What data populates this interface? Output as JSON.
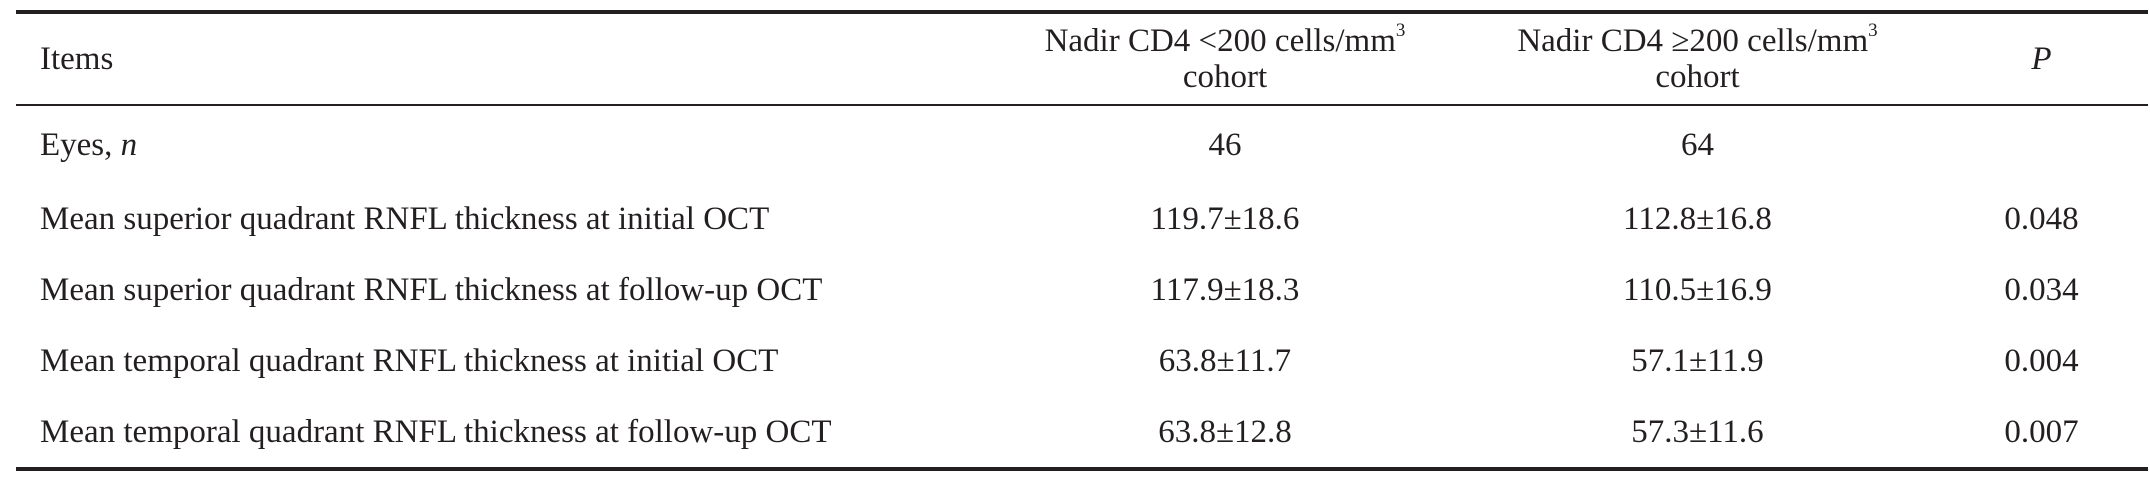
{
  "table": {
    "headers": {
      "items": "Items",
      "group1": {
        "line1": "Nadir CD4 <200 cells/mm",
        "sup": "3",
        "line2": "cohort"
      },
      "group2": {
        "line1": "Nadir CD4 ≥200 cells/mm",
        "sup": "3",
        "line2": "cohort"
      },
      "p": "P"
    },
    "rows": [
      {
        "item_text": "Eyes, ",
        "item_italic": "n",
        "group1": "46",
        "group2": "64",
        "p": ""
      },
      {
        "item_text": "Mean superior quadrant RNFL thickness at initial OCT",
        "item_italic": "",
        "group1": "119.7±18.6",
        "group2": "112.8±16.8",
        "p": "0.048"
      },
      {
        "item_text": "Mean superior quadrant RNFL thickness at follow-up OCT",
        "item_italic": "",
        "group1": "117.9±18.3",
        "group2": "110.5±16.9",
        "p": "0.034"
      },
      {
        "item_text": "Mean temporal quadrant RNFL thickness at initial OCT",
        "item_italic": "",
        "group1": "63.8±11.7",
        "group2": "57.1±11.9",
        "p": "0.004"
      },
      {
        "item_text": "Mean temporal quadrant RNFL thickness at follow-up OCT",
        "item_italic": "",
        "group1": "63.8±12.8",
        "group2": "57.3±11.6",
        "p": "0.007"
      }
    ]
  }
}
